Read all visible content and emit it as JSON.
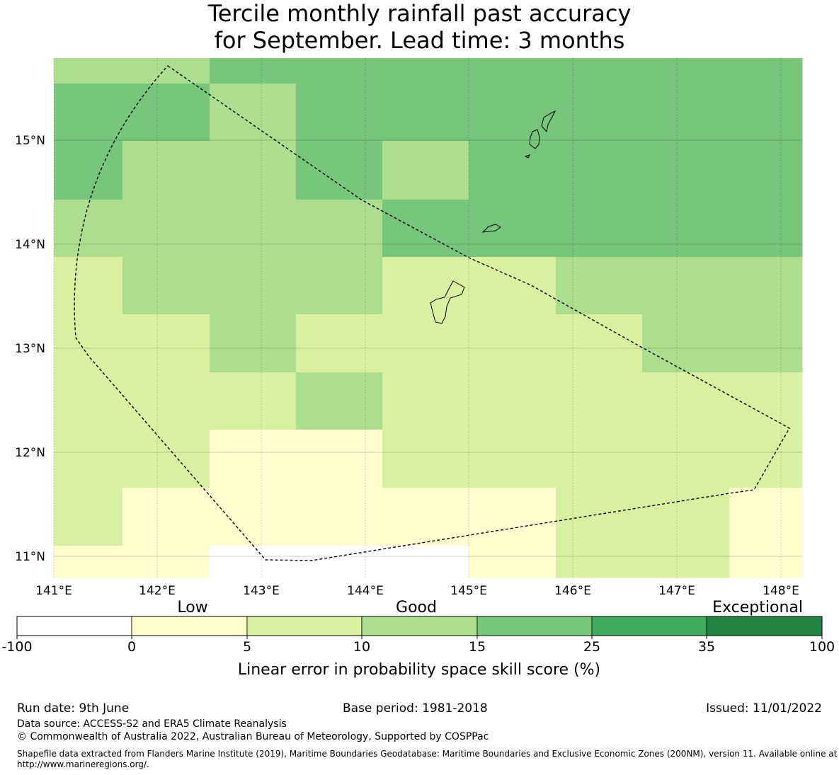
{
  "title": {
    "line1": "Tercile monthly rainfall past accuracy",
    "line2": "for September. Lead time: 3 months"
  },
  "map": {
    "lon_labels": [
      "141°E",
      "142°E",
      "143°E",
      "144°E",
      "145°E",
      "146°E",
      "147°E",
      "148°E"
    ],
    "lat_labels": [
      "15°N",
      "14°N",
      "13°N",
      "12°N",
      "11°N"
    ],
    "grid_values": [
      [
        10,
        10,
        15,
        15,
        15,
        15,
        15,
        15,
        15
      ],
      [
        15,
        15,
        10,
        15,
        15,
        15,
        15,
        15,
        15
      ],
      [
        15,
        10,
        10,
        15,
        10,
        15,
        15,
        15,
        15
      ],
      [
        10,
        10,
        10,
        10,
        15,
        15,
        15,
        15,
        15
      ],
      [
        5,
        10,
        10,
        10,
        5,
        5,
        10,
        10,
        10
      ],
      [
        5,
        5,
        10,
        5,
        5,
        5,
        5,
        10,
        10
      ],
      [
        5,
        5,
        5,
        10,
        5,
        5,
        5,
        5,
        5
      ],
      [
        5,
        5,
        0,
        0,
        5,
        5,
        5,
        5,
        5
      ],
      [
        5,
        0,
        0,
        0,
        0,
        0,
        5,
        5,
        0
      ],
      [
        0,
        0,
        -100,
        -100,
        -100,
        0,
        5,
        5,
        0
      ]
    ]
  },
  "legend": {
    "category_labels": [
      "Low",
      "Good",
      "Exceptional"
    ],
    "bins": [
      {
        "from": "-100",
        "to": "0",
        "color": "#ffffff"
      },
      {
        "from": "0",
        "to": "5",
        "color": "#fefdcb"
      },
      {
        "from": "5",
        "to": "10",
        "color": "#d9f0a3"
      },
      {
        "from": "10",
        "to": "15",
        "color": "#addd8e"
      },
      {
        "from": "15",
        "to": "25",
        "color": "#78c679"
      },
      {
        "from": "25",
        "to": "35",
        "color": "#41ab5d"
      },
      {
        "from": "35",
        "to": "100",
        "color": "#238443"
      }
    ],
    "tick_labels": [
      "-100",
      "0",
      "5",
      "10",
      "15",
      "25",
      "35",
      "100"
    ],
    "axis_label": "Linear error in probability space skill score (%)"
  },
  "footer": {
    "run_date": "Run date: 9th June",
    "base_period": "Base period: 1981-2018",
    "issued": "Issued: 11/01/2022",
    "data_source": "Data source: ACCESS-S2 and ERA5 Climate Reanalysis",
    "copyright": "© Commonwealth of Australia 2022, Australian Bureau of Meteorology, Supported by COSPPac",
    "shapefile": "Shapefile data extracted from Flanders Marine Institute (2019), Maritime Boundaries Geodatabase: Maritime Boundaries and Exclusive Economic Zones (200NM), version 11. Available online at http://www.marineregions.org/."
  }
}
